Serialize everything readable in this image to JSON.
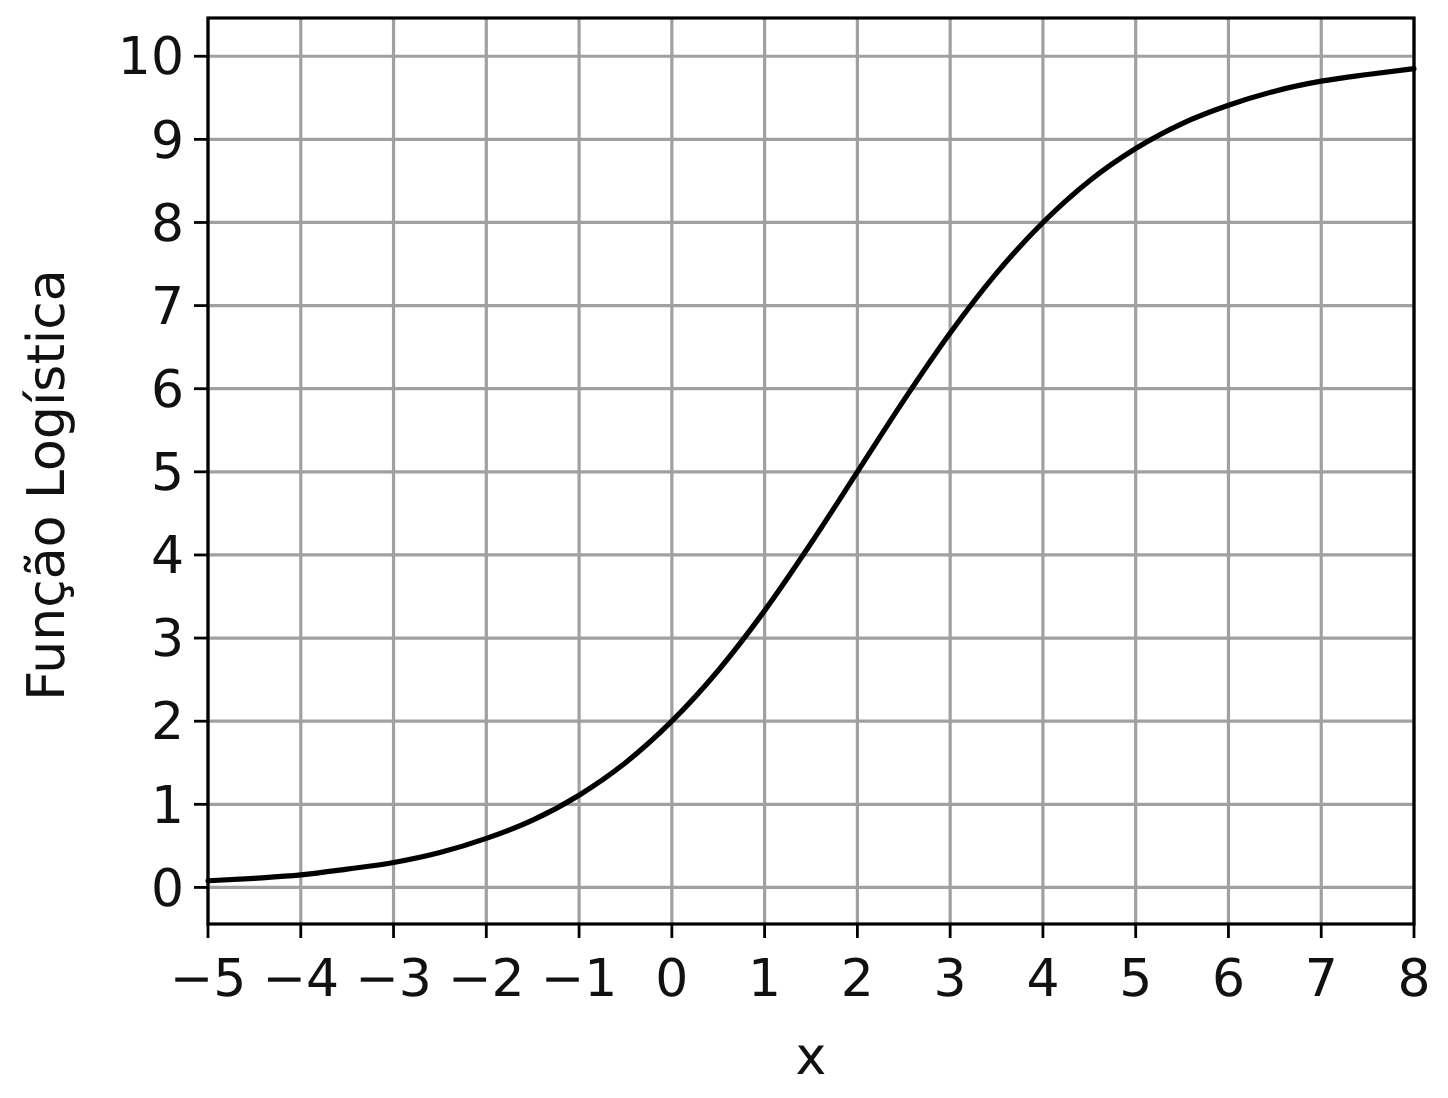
{
  "chart_data": {
    "type": "line",
    "xlabel": "x",
    "ylabel": "Função Logística",
    "x": [
      -5,
      -4.5,
      -4,
      -3.5,
      -3,
      -2.5,
      -2,
      -1.5,
      -1,
      -0.5,
      0,
      0.5,
      1,
      1.5,
      2,
      2.5,
      3,
      3.5,
      4,
      4.5,
      5,
      5.5,
      6,
      6.5,
      7,
      7.5,
      8
    ],
    "values": [
      0.08,
      0.11,
      0.15,
      0.22,
      0.3,
      0.42,
      0.59,
      0.81,
      1.11,
      1.5,
      2.0,
      2.61,
      3.33,
      4.14,
      5.0,
      5.86,
      6.67,
      7.39,
      8.0,
      8.5,
      8.89,
      9.19,
      9.41,
      9.58,
      9.7,
      9.78,
      9.85
    ],
    "color": "#000000",
    "xlim": [
      -5,
      8
    ],
    "ylim": [
      -0.44,
      10.46
    ],
    "xticks": [
      -5,
      -4,
      -3,
      -2,
      -1,
      0,
      1,
      2,
      3,
      4,
      5,
      6,
      7,
      8
    ],
    "yticks": [
      0,
      1,
      2,
      3,
      4,
      5,
      6,
      7,
      8,
      9,
      10
    ],
    "grid": true
  }
}
